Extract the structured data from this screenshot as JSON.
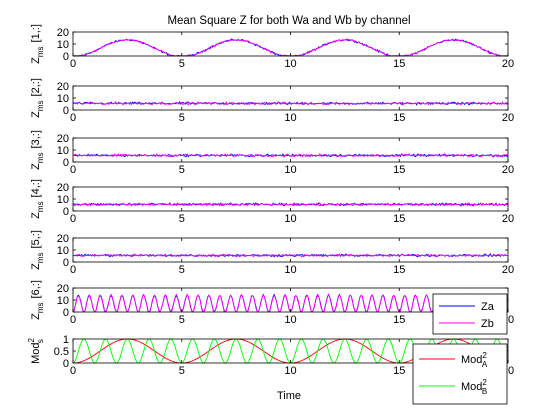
{
  "colors": {
    "za": "#0000ff",
    "zb": "#ff00ff",
    "mod_a": "#ff0000",
    "mod_b": "#00ff00",
    "axes": "#000000",
    "background": "#ffffff"
  },
  "chart_data": [
    {
      "type": "line",
      "title": "Mean Square Z for both Wa and Wb by channel",
      "ylabel": "Z_ms [1,:]",
      "xlim": [
        0,
        20
      ],
      "ylim": [
        0,
        20
      ],
      "xticks": [
        "0",
        "5",
        "10",
        "15",
        "20"
      ],
      "yticks": [
        "0",
        "10",
        "20"
      ],
      "series": [
        {
          "color": "#0000ff",
          "kind": "sine",
          "period": 5,
          "baseline": 6.5,
          "amplitude": 7,
          "noise": 1.2
        },
        {
          "color": "#ff00ff",
          "kind": "sine",
          "period": 5,
          "baseline": 6.5,
          "amplitude": 7,
          "noise": 1.2
        }
      ]
    },
    {
      "type": "line",
      "ylabel": "Z_ms [2,:]",
      "xlim": [
        0,
        20
      ],
      "ylim": [
        0,
        20
      ],
      "xticks": [
        "0",
        "5",
        "10",
        "15",
        "20"
      ],
      "yticks": [
        "0",
        "10",
        "20"
      ],
      "series": [
        {
          "color": "#0000ff",
          "kind": "noise",
          "baseline": 5.5,
          "noise": 1.5
        },
        {
          "color": "#ff00ff",
          "kind": "noise",
          "baseline": 5.5,
          "noise": 1.5
        }
      ]
    },
    {
      "type": "line",
      "ylabel": "Z_ms [3,:]",
      "xlim": [
        0,
        20
      ],
      "ylim": [
        0,
        20
      ],
      "xticks": [
        "0",
        "5",
        "10",
        "15",
        "20"
      ],
      "yticks": [
        "0",
        "10",
        "20"
      ],
      "series": [
        {
          "color": "#0000ff",
          "kind": "noise",
          "baseline": 5.5,
          "noise": 1.5
        },
        {
          "color": "#ff00ff",
          "kind": "noise",
          "baseline": 5.5,
          "noise": 1.5
        }
      ]
    },
    {
      "type": "line",
      "ylabel": "Z_ms [4,:]",
      "xlim": [
        0,
        20
      ],
      "ylim": [
        0,
        20
      ],
      "xticks": [
        "0",
        "5",
        "10",
        "15",
        "20"
      ],
      "yticks": [
        "0",
        "10",
        "20"
      ],
      "series": [
        {
          "color": "#0000ff",
          "kind": "noise",
          "baseline": 5.5,
          "noise": 1.5
        },
        {
          "color": "#ff00ff",
          "kind": "noise",
          "baseline": 5.5,
          "noise": 1.5
        }
      ]
    },
    {
      "type": "line",
      "ylabel": "Z_ms [5,:]",
      "xlim": [
        0,
        20
      ],
      "ylim": [
        0,
        20
      ],
      "xticks": [
        "0",
        "5",
        "10",
        "15",
        "20"
      ],
      "yticks": [
        "0",
        "10",
        "20"
      ],
      "series": [
        {
          "color": "#0000ff",
          "kind": "noise",
          "baseline": 5.5,
          "noise": 1.5
        },
        {
          "color": "#ff00ff",
          "kind": "noise",
          "baseline": 5.5,
          "noise": 1.5
        }
      ]
    },
    {
      "type": "line",
      "ylabel": "Z_ms [6,:]",
      "xlim": [
        0,
        20
      ],
      "ylim": [
        0,
        20
      ],
      "xticks": [
        "0",
        "5",
        "10",
        "15",
        "20"
      ],
      "yticks": [
        "0",
        "10",
        "20"
      ],
      "legend": {
        "position": "right",
        "entries": [
          "Za",
          "Zb"
        ]
      },
      "series": [
        {
          "name": "Za",
          "color": "#0000ff",
          "kind": "oscillation",
          "period": 0.5,
          "baseline": 7,
          "amplitude": 7,
          "noise": 1
        },
        {
          "name": "Zb",
          "color": "#ff00ff",
          "kind": "oscillation",
          "period": 0.5,
          "baseline": 7,
          "amplitude": 7,
          "noise": 1
        }
      ]
    },
    {
      "type": "line",
      "ylabel": "Mod_s^2",
      "xlabel": "Time",
      "xlim": [
        0,
        20
      ],
      "ylim": [
        0,
        1
      ],
      "xticks": [
        "0",
        "5",
        "10",
        "15",
        "20"
      ],
      "yticks": [
        "0",
        "0.5",
        "1"
      ],
      "legend": {
        "position": "bottom-right",
        "entries": [
          "Mod A^2",
          "Mod B^2"
        ]
      },
      "series": [
        {
          "name": "Mod A^2",
          "color": "#ff0000",
          "kind": "sin2",
          "period": 5,
          "phase": 0
        },
        {
          "name": "Mod B^2",
          "color": "#00ff00",
          "kind": "sin2",
          "period": 1,
          "phase": 0
        }
      ]
    }
  ],
  "legends": {
    "z": [
      {
        "label": "Za",
        "color": "#0000ff"
      },
      {
        "label": "Zb",
        "color": "#ff00ff"
      }
    ],
    "mod": [
      {
        "main": "Mod",
        "sup": "2",
        "sub": "A",
        "color": "#ff0000"
      },
      {
        "main": "Mod",
        "sup": "2",
        "sub": "B",
        "color": "#00ff00"
      }
    ]
  },
  "labels": {
    "title": "Mean Square Z for both Wa and Wb by channel",
    "z_main": "Z",
    "z_sub": "ms",
    "rows": [
      "[1,:]",
      "[2,:]",
      "[3,:]",
      "[4,:]",
      "[5,:]",
      "[6,:]"
    ],
    "mod_main": "Mod",
    "mod_sup": "2",
    "mod_sub": "s",
    "xlabel": "Time"
  }
}
